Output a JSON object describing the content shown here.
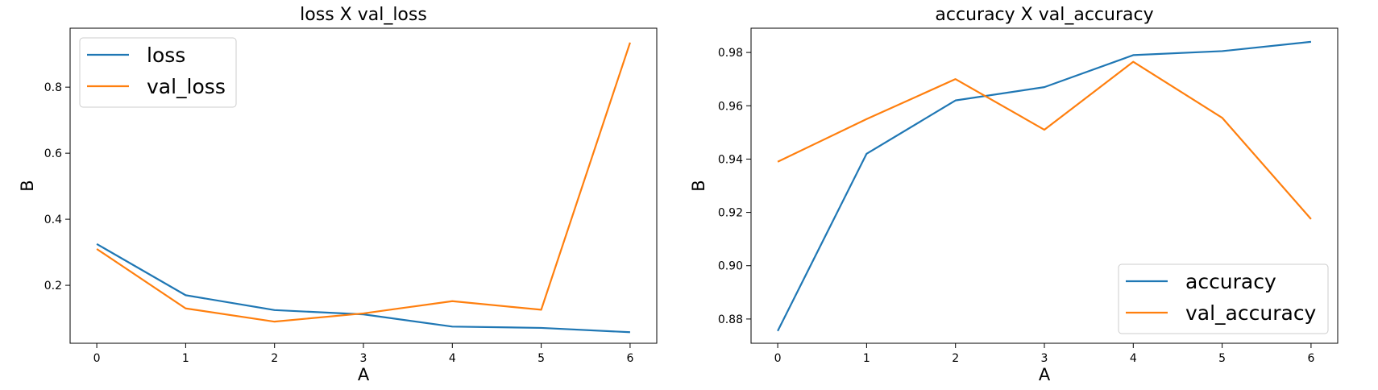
{
  "chart_data": [
    {
      "type": "line",
      "title": "loss X val_loss",
      "xlabel": "A",
      "ylabel": "B",
      "x": [
        0,
        1,
        2,
        3,
        4,
        5,
        6
      ],
      "xticks": [
        "0",
        "1",
        "2",
        "3",
        "4",
        "5",
        "6"
      ],
      "yticks": [
        "0.2",
        "0.4",
        "0.6",
        "0.8"
      ],
      "ytick_values": [
        0.2,
        0.4,
        0.6,
        0.8
      ],
      "xlim": [
        -0.3,
        6.3
      ],
      "ylim": [
        0.0245,
        0.9785
      ],
      "grid": false,
      "legend_position": "upper-left",
      "series": [
        {
          "name": "loss",
          "color": "#1f77b4",
          "values": [
            0.325,
            0.17,
            0.125,
            0.112,
            0.075,
            0.071,
            0.058
          ]
        },
        {
          "name": "val_loss",
          "color": "#ff7f0e",
          "values": [
            0.31,
            0.13,
            0.09,
            0.115,
            0.152,
            0.126,
            0.935
          ]
        }
      ]
    },
    {
      "type": "line",
      "title": "accuracy X val_accuracy",
      "xlabel": "A",
      "ylabel": "B",
      "x": [
        0,
        1,
        2,
        3,
        4,
        5,
        6
      ],
      "xticks": [
        "0",
        "1",
        "2",
        "3",
        "4",
        "5",
        "6"
      ],
      "yticks": [
        "0.88",
        "0.90",
        "0.92",
        "0.94",
        "0.96",
        "0.98"
      ],
      "ytick_values": [
        0.88,
        0.9,
        0.92,
        0.94,
        0.96,
        0.98
      ],
      "xlim": [
        -0.3,
        6.3
      ],
      "ylim": [
        0.8709,
        0.9891
      ],
      "grid": false,
      "legend_position": "lower-right",
      "series": [
        {
          "name": "accuracy",
          "color": "#1f77b4",
          "values": [
            0.8755,
            0.942,
            0.962,
            0.967,
            0.979,
            0.9805,
            0.984
          ]
        },
        {
          "name": "val_accuracy",
          "color": "#ff7f0e",
          "values": [
            0.939,
            0.955,
            0.97,
            0.951,
            0.9765,
            0.9555,
            0.9175
          ]
        }
      ]
    }
  ]
}
